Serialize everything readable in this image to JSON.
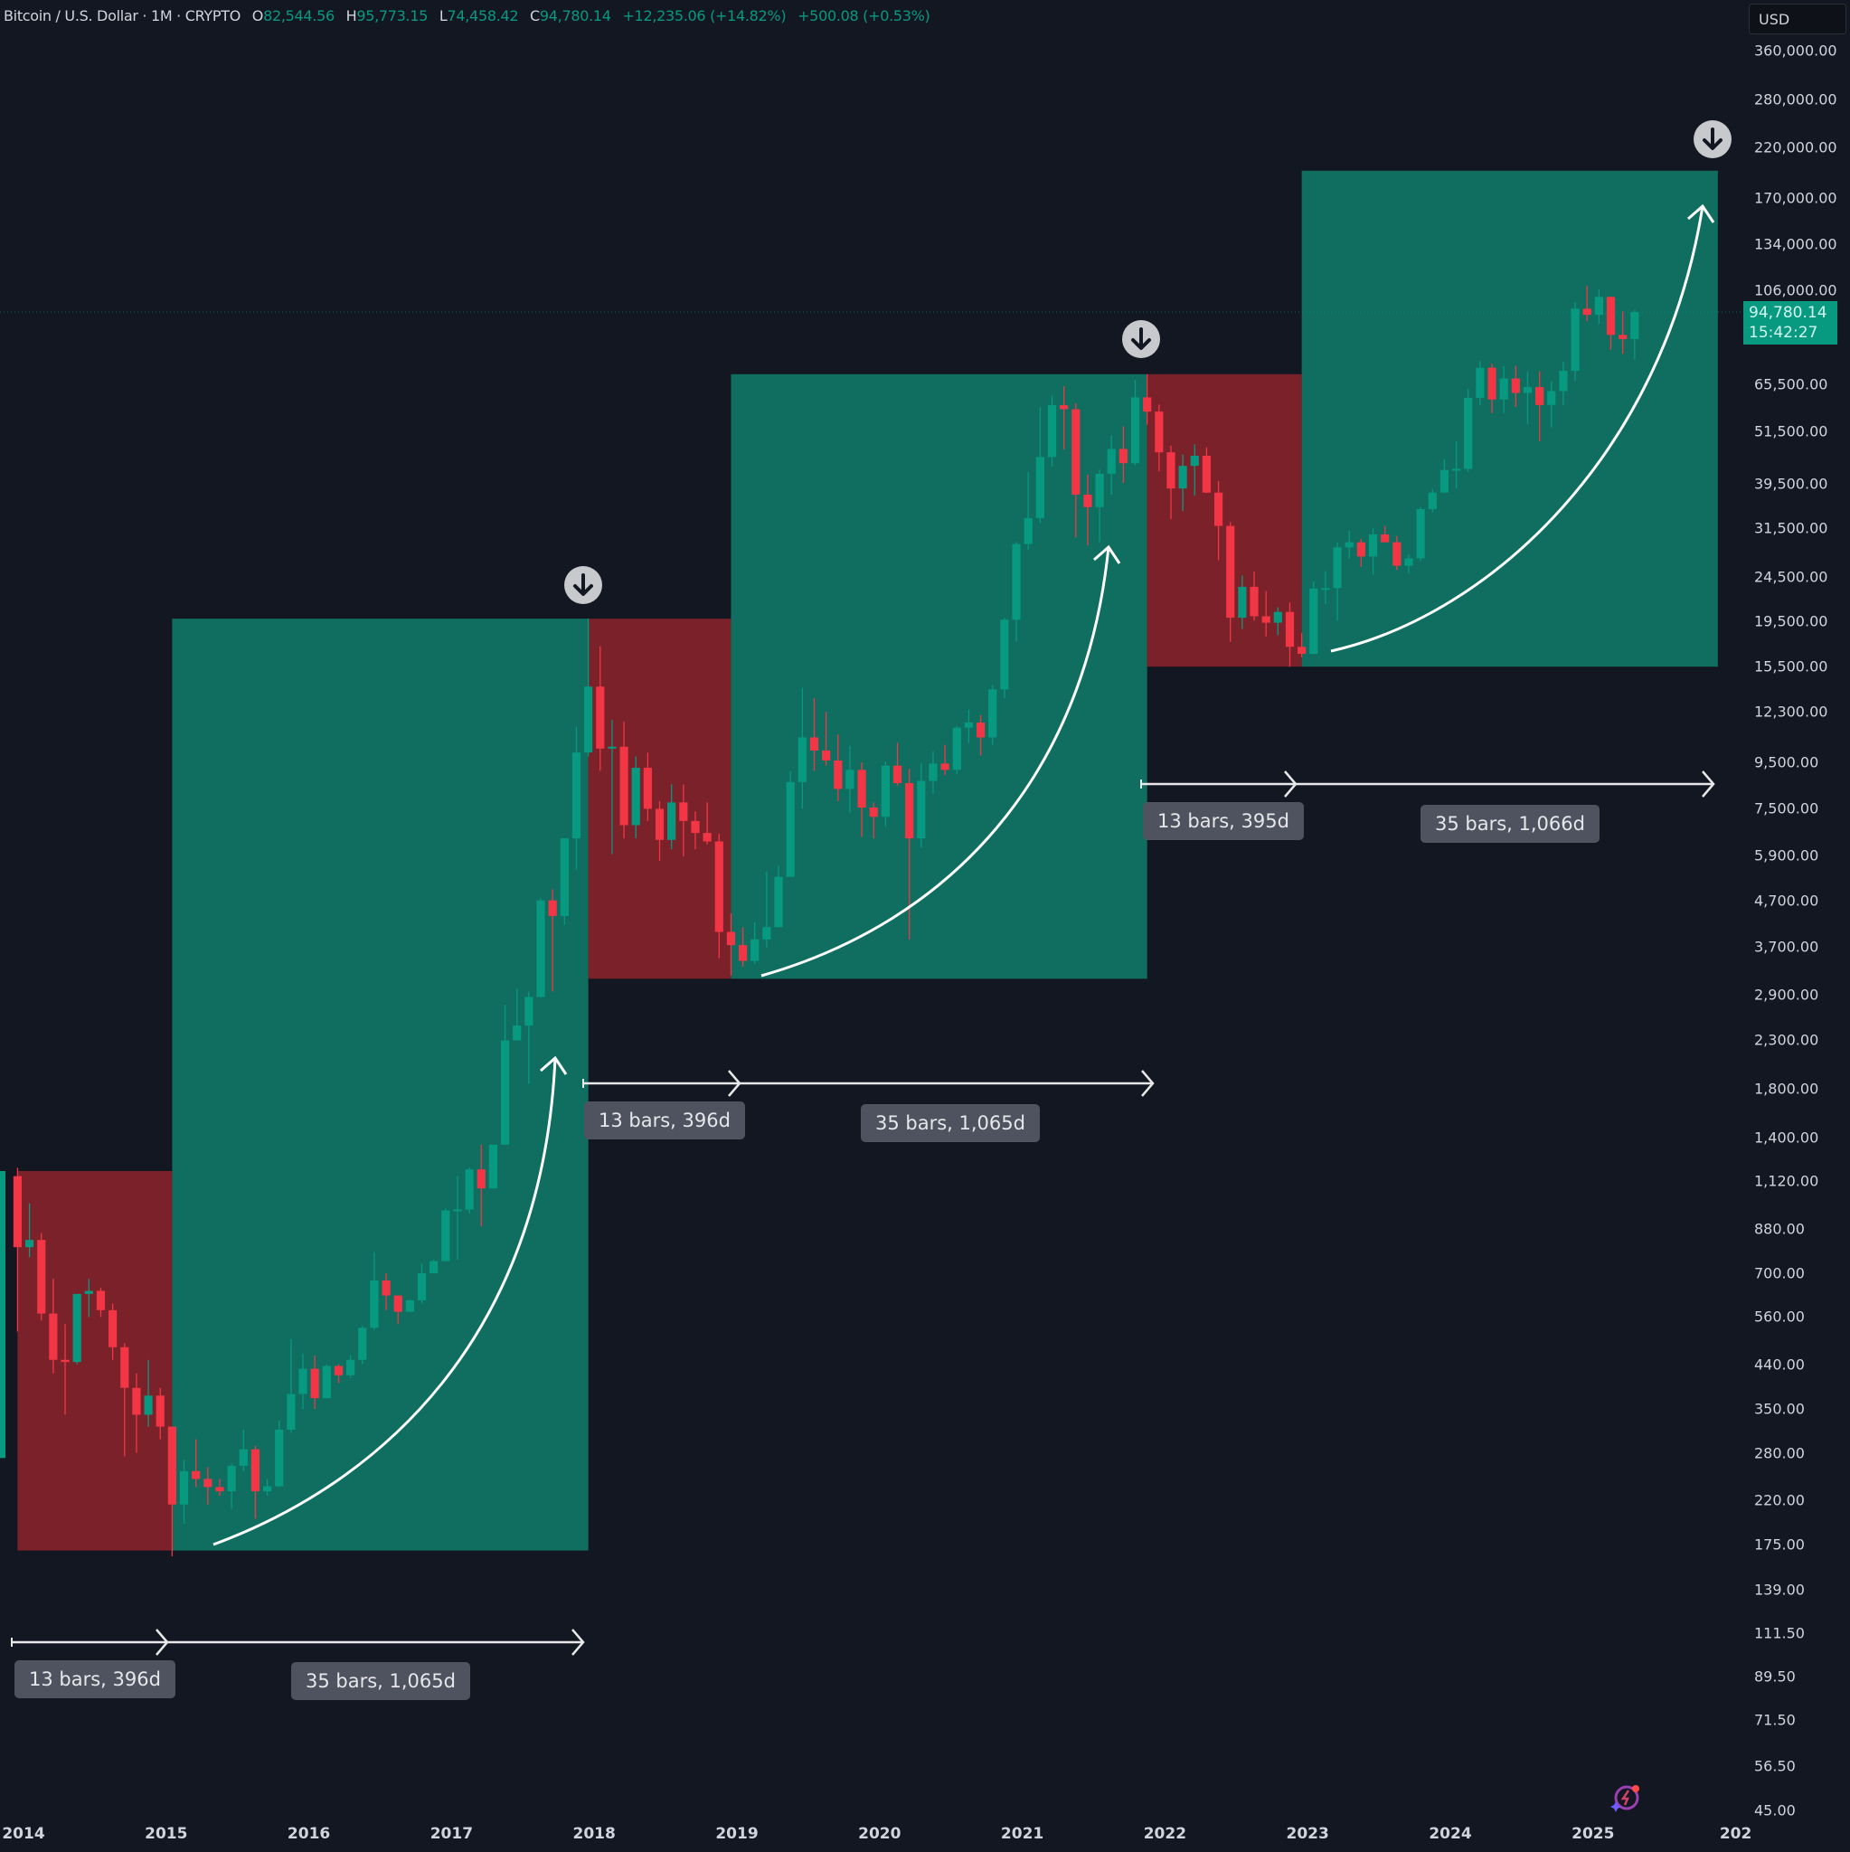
{
  "header": {
    "symbol": "Bitcoin / U.S. Dollar · 1M · CRYPTO",
    "open_label": "O",
    "open": "82,544.56",
    "high_label": "H",
    "high": "95,773.15",
    "low_label": "L",
    "low": "74,458.42",
    "close_label": "C",
    "close": "94,780.14",
    "change": "+12,235.06 (+14.82%)",
    "extra_change": "+500.08 (+0.53%)"
  },
  "price_axis": {
    "currency": "USD",
    "current_price": "94,780.14",
    "countdown": "15:42:27"
  },
  "colors": {
    "background": "#131722",
    "up_candle": "#089981",
    "down_candle": "#f23645",
    "green_zone": "#0f6e60",
    "red_zone": "#7a2129",
    "measure_label_bg": "#4f535f",
    "price_tag": "#089981"
  },
  "measurements": [
    {
      "label": "13 bars, 396d"
    },
    {
      "label": "35 bars, 1,065d"
    },
    {
      "label": "13 bars, 396d"
    },
    {
      "label": "35 bars, 1,065d"
    },
    {
      "label": "13 bars, 395d"
    },
    {
      "label": "35 bars, 1,066d"
    }
  ],
  "icons": {
    "cycle_top_markers": "down-arrow-circle-icon",
    "brand": "tradingview-assistant-icon"
  },
  "chart_data": {
    "type": "candlestick",
    "title": "Bitcoin / U.S. Dollar · 1M · CRYPTO",
    "scale": "log",
    "xlabel": "",
    "ylabel": "USD",
    "ylim": [
      45,
      360000
    ],
    "x_ticks": [
      "2014",
      "2015",
      "2016",
      "2017",
      "2018",
      "2019",
      "2020",
      "2021",
      "2022",
      "2023",
      "2024",
      "2025",
      "202"
    ],
    "y_ticks": [
      "360,000.00",
      "280,000.00",
      "220,000.00",
      "170,000.00",
      "134,000.00",
      "106,000.00",
      "65,500.00",
      "51,500.00",
      "39,500.00",
      "31,500.00",
      "24,500.00",
      "19,500.00",
      "15,500.00",
      "12,300.00",
      "9,500.00",
      "7,500.00",
      "5,900.00",
      "4,700.00",
      "3,700.00",
      "2,900.00",
      "2,300.00",
      "1,800.00",
      "1,400.00",
      "1,120.00",
      "880.00",
      "700.00",
      "560.00",
      "440.00",
      "350.00",
      "280.00",
      "220.00",
      "175.00",
      "139.00",
      "111.50",
      "89.50",
      "71.50",
      "56.50",
      "45.00"
    ],
    "y_tick_values": [
      360000,
      280000,
      220000,
      170000,
      134000,
      106000,
      65500,
      51500,
      39500,
      31500,
      24500,
      19500,
      15500,
      12300,
      9500,
      7500,
      5900,
      4700,
      3700,
      2900,
      2300,
      1800,
      1400,
      1120,
      880,
      700,
      560,
      440,
      350,
      280,
      220,
      175,
      139,
      111.5,
      89.5,
      71.5,
      56.5,
      45
    ],
    "last_bar": {
      "open": 82544.56,
      "high": 95773.15,
      "low": 74458.42,
      "close": 94780.14,
      "change": 12235.06,
      "change_pct": 14.82
    },
    "zones": [
      {
        "type": "bear",
        "start": "2013-12",
        "end": "2015-01",
        "low": 170,
        "high": 1180
      },
      {
        "type": "bull",
        "start": "2015-01",
        "end": "2017-12",
        "low": 170,
        "high": 19800
      },
      {
        "type": "bear",
        "start": "2017-12",
        "end": "2018-12",
        "low": 3150,
        "high": 19800
      },
      {
        "type": "bull",
        "start": "2018-12",
        "end": "2021-11",
        "low": 3150,
        "high": 69000
      },
      {
        "type": "bear",
        "start": "2021-11",
        "end": "2022-12",
        "low": 15500,
        "high": 69000
      },
      {
        "type": "bull",
        "start": "2022-12",
        "end": "2025-11",
        "low": 15500,
        "high": 195000
      }
    ],
    "cycle_tops": [
      "2017-12",
      "2021-11",
      "2025-10"
    ],
    "ohlc_monthly_start": "2013-12",
    "ohlc": [
      [
        1150,
        1200,
        520,
        800
      ],
      [
        800,
        1000,
        760,
        830
      ],
      [
        830,
        860,
        550,
        570
      ],
      [
        570,
        680,
        420,
        450
      ],
      [
        450,
        540,
        340,
        445
      ],
      [
        445,
        630,
        440,
        630
      ],
      [
        630,
        680,
        560,
        640
      ],
      [
        640,
        650,
        560,
        580
      ],
      [
        580,
        600,
        450,
        480
      ],
      [
        480,
        490,
        275,
        390
      ],
      [
        390,
        420,
        280,
        340
      ],
      [
        340,
        450,
        320,
        375
      ],
      [
        375,
        390,
        300,
        320
      ],
      [
        320,
        320,
        165,
        215
      ],
      [
        215,
        270,
        195,
        255
      ],
      [
        255,
        300,
        235,
        245
      ],
      [
        245,
        260,
        215,
        235
      ],
      [
        235,
        245,
        225,
        230
      ],
      [
        230,
        265,
        210,
        262
      ],
      [
        262,
        315,
        255,
        285
      ],
      [
        285,
        290,
        200,
        230
      ],
      [
        230,
        245,
        225,
        236
      ],
      [
        236,
        330,
        235,
        315
      ],
      [
        315,
        500,
        310,
        378
      ],
      [
        378,
        465,
        350,
        430
      ],
      [
        430,
        460,
        350,
        370
      ],
      [
        370,
        440,
        370,
        436
      ],
      [
        436,
        440,
        400,
        416
      ],
      [
        416,
        460,
        410,
        450
      ],
      [
        450,
        535,
        440,
        530
      ],
      [
        530,
        780,
        525,
        675
      ],
      [
        675,
        700,
        580,
        625
      ],
      [
        625,
        625,
        540,
        575
      ],
      [
        575,
        610,
        595,
        610
      ],
      [
        610,
        735,
        600,
        700
      ],
      [
        700,
        750,
        700,
        745
      ],
      [
        745,
        975,
        745,
        965
      ],
      [
        965,
        1150,
        750,
        970
      ],
      [
        970,
        1200,
        950,
        1190
      ],
      [
        1190,
        1350,
        890,
        1080
      ],
      [
        1080,
        1350,
        1080,
        1350
      ],
      [
        1350,
        2760,
        1350,
        2300
      ],
      [
        2300,
        2990,
        2300,
        2480
      ],
      [
        2480,
        2950,
        1840,
        2870
      ],
      [
        2870,
        4750,
        2860,
        4700
      ],
      [
        4700,
        4975,
        2950,
        4340
      ],
      [
        4340,
        6450,
        4150,
        6450
      ],
      [
        6450,
        11400,
        5500,
        10000
      ],
      [
        10000,
        19800,
        9800,
        14000
      ],
      [
        14000,
        17200,
        9100,
        10200
      ],
      [
        10200,
        11800,
        5950,
        10300
      ],
      [
        10300,
        11700,
        6450,
        6900
      ],
      [
        6900,
        9800,
        6450,
        9250
      ],
      [
        9250,
        9990,
        7050,
        7500
      ],
      [
        7500,
        7800,
        5750,
        6400
      ],
      [
        6400,
        8500,
        6100,
        7750
      ],
      [
        7750,
        8500,
        5880,
        7050
      ],
      [
        7050,
        7400,
        6100,
        6630
      ],
      [
        6630,
        7750,
        6250,
        6350
      ],
      [
        6350,
        6600,
        3500,
        4000
      ],
      [
        4000,
        4400,
        3200,
        3740
      ],
      [
        3740,
        4100,
        3350,
        3450
      ],
      [
        3450,
        4200,
        3400,
        3850
      ],
      [
        3850,
        5450,
        3700,
        4100
      ],
      [
        4100,
        5600,
        4100,
        5300
      ],
      [
        5300,
        9100,
        5300,
        8600
      ],
      [
        8600,
        13900,
        7500,
        10800
      ],
      [
        10800,
        13200,
        9100,
        10100
      ],
      [
        10100,
        12300,
        9350,
        9600
      ],
      [
        9600,
        10950,
        7800,
        8300
      ],
      [
        8300,
        10350,
        7350,
        9150
      ],
      [
        9150,
        9500,
        6500,
        7550
      ],
      [
        7550,
        7750,
        6450,
        7200
      ],
      [
        7200,
        9550,
        6850,
        9350
      ],
      [
        9350,
        10500,
        8450,
        8550
      ],
      [
        8550,
        9200,
        3850,
        6450
      ],
      [
        6450,
        9450,
        6150,
        8650
      ],
      [
        8650,
        10050,
        8100,
        9450
      ],
      [
        9450,
        10400,
        8900,
        9150
      ],
      [
        9150,
        11450,
        8950,
        11350
      ],
      [
        11350,
        12450,
        10500,
        11650
      ],
      [
        11650,
        12100,
        9850,
        10800
      ],
      [
        10800,
        14100,
        10400,
        13800
      ],
      [
        13800,
        19900,
        13200,
        19700
      ],
      [
        19700,
        29300,
        17600,
        29000
      ],
      [
        29000,
        41900,
        28100,
        33100
      ],
      [
        33100,
        58300,
        32300,
        45200
      ],
      [
        45200,
        61800,
        43000,
        58900
      ],
      [
        58900,
        64900,
        47000,
        57700
      ],
      [
        57700,
        59500,
        30000,
        37300
      ],
      [
        37300,
        41300,
        28800,
        35000
      ],
      [
        35000,
        42400,
        29300,
        41500
      ],
      [
        41500,
        50500,
        37300,
        47100
      ],
      [
        47100,
        52900,
        39600,
        43800
      ],
      [
        43800,
        67000,
        43300,
        61300
      ],
      [
        61300,
        69000,
        53300,
        57000
      ],
      [
        57000,
        59100,
        42000,
        46300
      ],
      [
        46300,
        47900,
        32900,
        38500
      ],
      [
        38500,
        45800,
        34300,
        43200
      ],
      [
        43200,
        48200,
        37100,
        45500
      ],
      [
        45500,
        47500,
        37600,
        37700
      ],
      [
        37700,
        40000,
        26700,
        31800
      ],
      [
        31800,
        32400,
        17600,
        19900
      ],
      [
        19900,
        24700,
        18800,
        23300
      ],
      [
        23300,
        25200,
        19600,
        20050
      ],
      [
        20050,
        22800,
        18100,
        19400
      ],
      [
        19400,
        21000,
        18200,
        20500
      ],
      [
        20500,
        21500,
        15500,
        17150
      ],
      [
        17150,
        18400,
        16250,
        16550
      ],
      [
        16550,
        23950,
        16500,
        23100
      ],
      [
        23100,
        25250,
        21350,
        23150
      ],
      [
        23150,
        29200,
        19600,
        28500
      ],
      [
        28500,
        31000,
        26900,
        29250
      ],
      [
        29250,
        29800,
        25800,
        27200
      ],
      [
        27200,
        31400,
        24800,
        30450
      ],
      [
        30450,
        31800,
        29500,
        29250
      ],
      [
        29250,
        30200,
        25400,
        25950
      ],
      [
        25950,
        27500,
        24900,
        26950
      ],
      [
        26950,
        35000,
        26550,
        34650
      ],
      [
        34650,
        38400,
        34100,
        37700
      ],
      [
        37700,
        44700,
        37600,
        42300
      ],
      [
        42300,
        48950,
        38550,
        42550
      ],
      [
        42550,
        63900,
        41900,
        61150
      ],
      [
        61150,
        73800,
        59000,
        71300
      ],
      [
        71300,
        72800,
        56500,
        60650
      ],
      [
        60650,
        71900,
        56600,
        67500
      ],
      [
        67500,
        72000,
        58400,
        62700
      ],
      [
        62700,
        70000,
        53500,
        64600
      ],
      [
        64600,
        70000,
        49000,
        58950
      ],
      [
        58950,
        66500,
        52600,
        63300
      ],
      [
        63300,
        73600,
        58900,
        70200
      ],
      [
        70200,
        99600,
        66800,
        96400
      ],
      [
        96400,
        108300,
        90500,
        93400
      ],
      [
        93400,
        106400,
        89200,
        102400
      ],
      [
        102400,
        102500,
        78200,
        84350
      ],
      [
        84350,
        95000,
        76600,
        82550
      ],
      [
        82550,
        95773.15,
        74458.42,
        94780.14
      ]
    ]
  }
}
